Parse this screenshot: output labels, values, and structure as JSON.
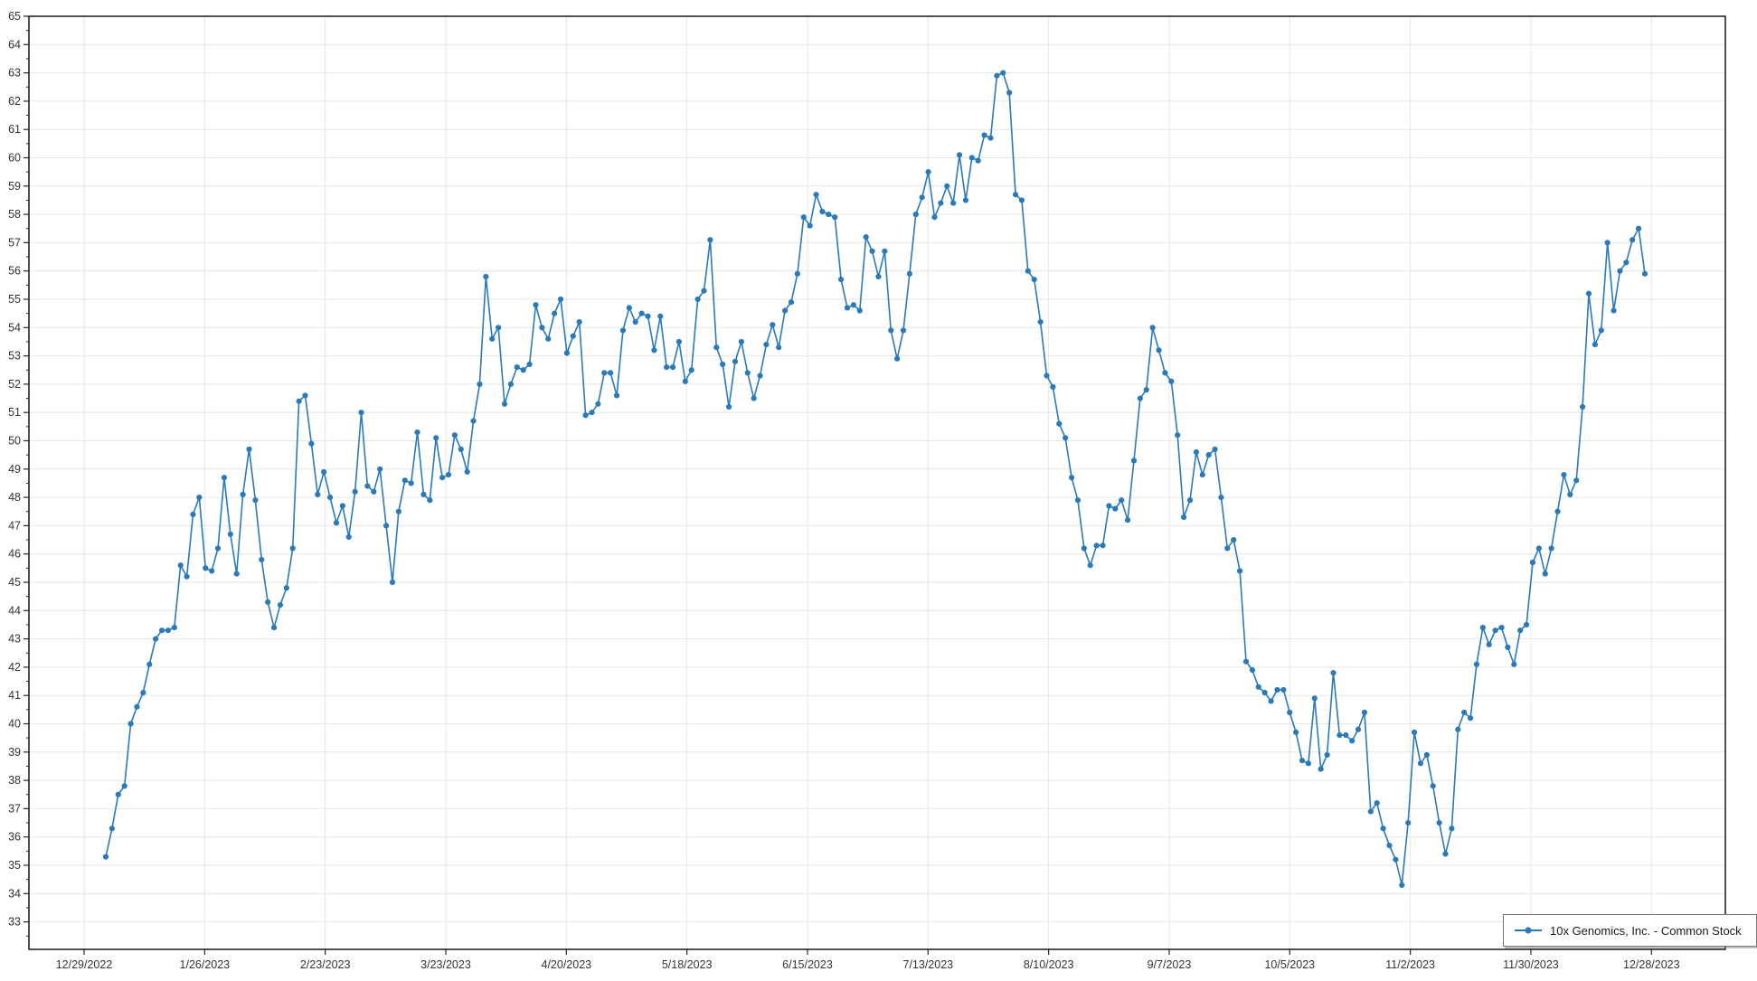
{
  "chart_data": {
    "type": "line",
    "title": "",
    "xlabel": "",
    "ylabel": "",
    "grid": true,
    "legend_position": "bottom-right",
    "ylim": [
      32.0,
      65.0
    ],
    "y_tick_labels": [
      65,
      64,
      63,
      62,
      61,
      60,
      59,
      58,
      57,
      56,
      55,
      54,
      53,
      52,
      51,
      50,
      49,
      48,
      47,
      46,
      45,
      44,
      43,
      42,
      41,
      40,
      39,
      38,
      37,
      36,
      35,
      34,
      33
    ],
    "x_tick_labels": [
      "12/29/2022",
      "1/26/2023",
      "2/23/2023",
      "3/23/2023",
      "4/20/2023",
      "5/18/2023",
      "6/15/2023",
      "7/13/2023",
      "8/10/2023",
      "9/7/2023",
      "10/5/2023",
      "11/2/2023",
      "11/30/2023",
      "12/28/2023"
    ],
    "series": [
      {
        "name": "10x Genomics, Inc. - Common Stock",
        "color": "#2a7ab9",
        "marker": "circle",
        "values": [
          35.3,
          36.3,
          37.5,
          37.8,
          40.0,
          40.6,
          41.1,
          42.1,
          43.0,
          43.3,
          43.3,
          43.4,
          45.6,
          45.2,
          47.4,
          48.0,
          45.5,
          45.4,
          46.2,
          48.7,
          46.7,
          45.3,
          48.1,
          49.7,
          47.9,
          45.8,
          44.3,
          43.4,
          44.2,
          44.8,
          46.2,
          51.4,
          51.6,
          49.9,
          48.1,
          48.9,
          48.0,
          47.1,
          47.7,
          46.6,
          48.2,
          51.0,
          48.4,
          48.2,
          49.0,
          47.0,
          45.0,
          47.5,
          48.6,
          48.5,
          50.3,
          48.1,
          47.9,
          50.1,
          48.7,
          48.8,
          50.2,
          49.7,
          48.9,
          50.7,
          52.0,
          55.8,
          53.6,
          54.0,
          51.3,
          52.0,
          52.6,
          52.5,
          52.7,
          54.8,
          54.0,
          53.6,
          54.5,
          55.0,
          53.1,
          53.7,
          54.2,
          50.9,
          51.0,
          51.3,
          52.4,
          52.4,
          51.6,
          53.9,
          54.7,
          54.2,
          54.5,
          54.4,
          53.2,
          54.4,
          52.6,
          52.6,
          53.5,
          52.1,
          52.5,
          55.0,
          55.3,
          57.1,
          53.3,
          52.7,
          51.2,
          52.8,
          53.5,
          52.4,
          51.5,
          52.3,
          53.4,
          54.1,
          53.3,
          54.6,
          54.9,
          55.9,
          57.9,
          57.6,
          58.7,
          58.1,
          58.0,
          57.9,
          55.7,
          54.7,
          54.8,
          54.6,
          57.2,
          56.7,
          55.8,
          56.7,
          53.9,
          52.9,
          53.9,
          55.9,
          58.0,
          58.6,
          59.5,
          57.9,
          58.4,
          59.0,
          58.4,
          60.1,
          58.5,
          60.0,
          59.9,
          60.8,
          60.7,
          62.9,
          63.0,
          62.3,
          58.7,
          58.5,
          56.0,
          55.7,
          54.2,
          52.3,
          51.9,
          50.6,
          50.1,
          48.7,
          47.9,
          46.2,
          45.6,
          46.3,
          46.3,
          47.7,
          47.6,
          47.9,
          47.2,
          49.3,
          51.5,
          51.8,
          54.0,
          53.2,
          52.4,
          52.1,
          50.2,
          47.3,
          47.9,
          49.6,
          48.8,
          49.5,
          49.7,
          48.0,
          46.2,
          46.5,
          45.4,
          42.2,
          41.9,
          41.3,
          41.1,
          40.8,
          41.2,
          41.2,
          40.4,
          39.7,
          38.7,
          38.6,
          40.9,
          38.4,
          38.9,
          41.8,
          39.6,
          39.6,
          39.4,
          39.8,
          40.4,
          36.9,
          37.2,
          36.3,
          35.7,
          35.2,
          34.3,
          36.5,
          39.7,
          38.6,
          38.9,
          37.8,
          36.5,
          35.4,
          36.3,
          39.8,
          40.4,
          40.2,
          42.1,
          43.4,
          42.8,
          43.3,
          43.4,
          42.7,
          42.1,
          43.3,
          43.5,
          45.7,
          46.2,
          45.3,
          46.2,
          47.5,
          48.8,
          48.1,
          48.6,
          51.2,
          55.2,
          53.4,
          53.9,
          57.0,
          54.6,
          56.0,
          56.3,
          57.1,
          57.5,
          55.9
        ]
      }
    ],
    "colors": {
      "line": "#2a7ab9",
      "grid": "#e6e6e6",
      "axis_border": "#262626",
      "tick": "#262626",
      "label_text": "#333333",
      "background": "#ffffff"
    }
  },
  "legend": {
    "label": "10x Genomics, Inc. - Common Stock"
  }
}
